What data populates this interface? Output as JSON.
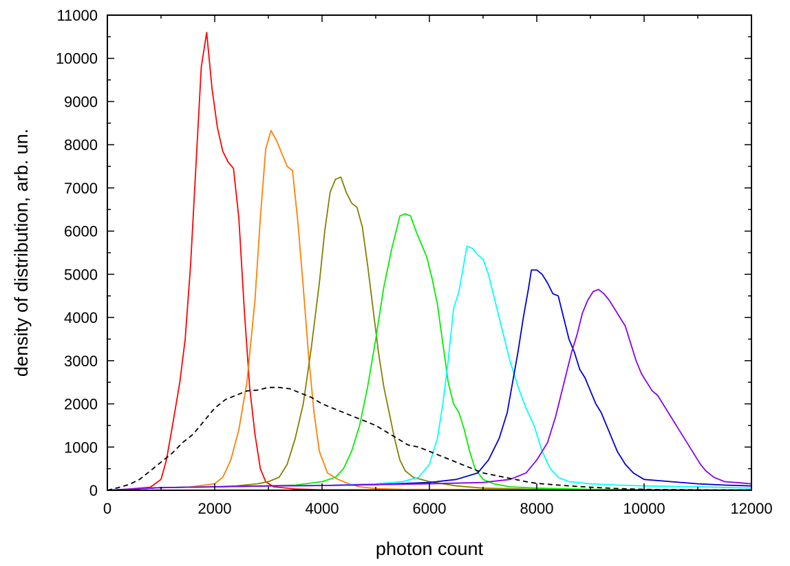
{
  "chart_data": {
    "type": "line",
    "title": "",
    "xlabel": "photon count",
    "ylabel": "density of distribution, arb. un.",
    "xlim": [
      0,
      12000
    ],
    "ylim": [
      0,
      11000
    ],
    "x_ticks": [
      0,
      2000,
      4000,
      6000,
      8000,
      10000,
      12000
    ],
    "y_ticks": [
      0,
      1000,
      2000,
      3000,
      4000,
      5000,
      6000,
      7000,
      8000,
      9000,
      10000,
      11000
    ],
    "grid": false,
    "legend": "none",
    "series": [
      {
        "color": "#ff0000",
        "dashed": false,
        "points": [
          [
            0,
            0
          ],
          [
            400,
            30
          ],
          [
            800,
            70
          ],
          [
            1000,
            250
          ],
          [
            1100,
            700
          ],
          [
            1200,
            1400
          ],
          [
            1350,
            2500
          ],
          [
            1450,
            3500
          ],
          [
            1550,
            5200
          ],
          [
            1650,
            7500
          ],
          [
            1750,
            9800
          ],
          [
            1850,
            10600
          ],
          [
            1950,
            9300
          ],
          [
            2050,
            8400
          ],
          [
            2150,
            7850
          ],
          [
            2250,
            7600
          ],
          [
            2350,
            7450
          ],
          [
            2450,
            6300
          ],
          [
            2550,
            4200
          ],
          [
            2650,
            2400
          ],
          [
            2750,
            1300
          ],
          [
            2850,
            500
          ],
          [
            2950,
            200
          ],
          [
            3100,
            80
          ],
          [
            3500,
            30
          ],
          [
            4000,
            10
          ],
          [
            12000,
            5
          ]
        ]
      },
      {
        "color": "#ff8000",
        "dashed": false,
        "points": [
          [
            0,
            0
          ],
          [
            1000,
            60
          ],
          [
            1500,
            70
          ],
          [
            1800,
            120
          ],
          [
            2000,
            150
          ],
          [
            2150,
            300
          ],
          [
            2300,
            700
          ],
          [
            2450,
            1400
          ],
          [
            2600,
            2500
          ],
          [
            2750,
            4400
          ],
          [
            2850,
            6300
          ],
          [
            2950,
            7900
          ],
          [
            3050,
            8330
          ],
          [
            3150,
            8100
          ],
          [
            3250,
            7800
          ],
          [
            3350,
            7500
          ],
          [
            3450,
            7400
          ],
          [
            3550,
            6200
          ],
          [
            3650,
            4700
          ],
          [
            3750,
            3100
          ],
          [
            3850,
            1800
          ],
          [
            3950,
            900
          ],
          [
            4100,
            400
          ],
          [
            4300,
            250
          ],
          [
            4500,
            150
          ],
          [
            4700,
            80
          ],
          [
            5000,
            40
          ],
          [
            5500,
            20
          ],
          [
            12000,
            5
          ]
        ]
      },
      {
        "color": "#808000",
        "dashed": false,
        "points": [
          [
            0,
            0
          ],
          [
            1000,
            60
          ],
          [
            2000,
            80
          ],
          [
            2400,
            100
          ],
          [
            2800,
            150
          ],
          [
            3000,
            200
          ],
          [
            3200,
            300
          ],
          [
            3350,
            600
          ],
          [
            3500,
            1200
          ],
          [
            3650,
            2000
          ],
          [
            3800,
            3300
          ],
          [
            3950,
            4800
          ],
          [
            4050,
            6000
          ],
          [
            4150,
            6900
          ],
          [
            4250,
            7200
          ],
          [
            4350,
            7250
          ],
          [
            4450,
            6900
          ],
          [
            4550,
            6650
          ],
          [
            4650,
            6550
          ],
          [
            4750,
            6100
          ],
          [
            4850,
            5200
          ],
          [
            4950,
            4200
          ],
          [
            5050,
            3200
          ],
          [
            5150,
            2400
          ],
          [
            5250,
            1800
          ],
          [
            5350,
            1200
          ],
          [
            5450,
            700
          ],
          [
            5550,
            450
          ],
          [
            5700,
            300
          ],
          [
            6000,
            200
          ],
          [
            6500,
            100
          ],
          [
            7000,
            50
          ],
          [
            8000,
            20
          ],
          [
            12000,
            5
          ]
        ]
      },
      {
        "color": "#00ee00",
        "dashed": false,
        "points": [
          [
            0,
            0
          ],
          [
            1000,
            60
          ],
          [
            2000,
            80
          ],
          [
            3000,
            100
          ],
          [
            3500,
            120
          ],
          [
            4000,
            200
          ],
          [
            4250,
            300
          ],
          [
            4400,
            500
          ],
          [
            4550,
            900
          ],
          [
            4700,
            1500
          ],
          [
            4850,
            2400
          ],
          [
            5000,
            3500
          ],
          [
            5150,
            4700
          ],
          [
            5300,
            5600
          ],
          [
            5450,
            6350
          ],
          [
            5550,
            6400
          ],
          [
            5650,
            6350
          ],
          [
            5750,
            6000
          ],
          [
            5850,
            5700
          ],
          [
            5950,
            5400
          ],
          [
            6050,
            4900
          ],
          [
            6150,
            4300
          ],
          [
            6250,
            3400
          ],
          [
            6350,
            2500
          ],
          [
            6450,
            2000
          ],
          [
            6550,
            1800
          ],
          [
            6650,
            1400
          ],
          [
            6750,
            900
          ],
          [
            6850,
            500
          ],
          [
            7000,
            250
          ],
          [
            7200,
            150
          ],
          [
            7500,
            80
          ],
          [
            8000,
            50
          ],
          [
            9000,
            20
          ],
          [
            12000,
            5
          ]
        ]
      },
      {
        "color": "#00ffff",
        "dashed": false,
        "points": [
          [
            0,
            0
          ],
          [
            1000,
            60
          ],
          [
            2000,
            80
          ],
          [
            3000,
            100
          ],
          [
            4000,
            110
          ],
          [
            5000,
            150
          ],
          [
            5500,
            200
          ],
          [
            5800,
            300
          ],
          [
            6000,
            600
          ],
          [
            6150,
            1200
          ],
          [
            6250,
            2000
          ],
          [
            6350,
            3000
          ],
          [
            6450,
            4200
          ],
          [
            6550,
            4600
          ],
          [
            6650,
            5300
          ],
          [
            6700,
            5650
          ],
          [
            6800,
            5600
          ],
          [
            6900,
            5450
          ],
          [
            7000,
            5350
          ],
          [
            7100,
            5000
          ],
          [
            7200,
            4500
          ],
          [
            7300,
            4000
          ],
          [
            7400,
            3500
          ],
          [
            7500,
            3000
          ],
          [
            7650,
            2400
          ],
          [
            7800,
            1900
          ],
          [
            7950,
            1500
          ],
          [
            8100,
            900
          ],
          [
            8250,
            500
          ],
          [
            8400,
            300
          ],
          [
            8600,
            200
          ],
          [
            9000,
            150
          ],
          [
            9500,
            120
          ],
          [
            10000,
            100
          ],
          [
            11000,
            80
          ],
          [
            12000,
            50
          ]
        ]
      },
      {
        "color": "#0000cc",
        "dashed": false,
        "points": [
          [
            0,
            0
          ],
          [
            1000,
            60
          ],
          [
            2000,
            80
          ],
          [
            3000,
            100
          ],
          [
            4000,
            110
          ],
          [
            5000,
            130
          ],
          [
            6000,
            180
          ],
          [
            6500,
            250
          ],
          [
            6900,
            400
          ],
          [
            7100,
            700
          ],
          [
            7300,
            1200
          ],
          [
            7450,
            1800
          ],
          [
            7550,
            2500
          ],
          [
            7650,
            3200
          ],
          [
            7750,
            4000
          ],
          [
            7850,
            4700
          ],
          [
            7900,
            5100
          ],
          [
            8000,
            5100
          ],
          [
            8100,
            5000
          ],
          [
            8200,
            4800
          ],
          [
            8300,
            4550
          ],
          [
            8400,
            4500
          ],
          [
            8500,
            4000
          ],
          [
            8600,
            3500
          ],
          [
            8700,
            3200
          ],
          [
            8800,
            2800
          ],
          [
            8900,
            2600
          ],
          [
            9000,
            2300
          ],
          [
            9100,
            2000
          ],
          [
            9200,
            1800
          ],
          [
            9300,
            1500
          ],
          [
            9400,
            1200
          ],
          [
            9500,
            900
          ],
          [
            9650,
            600
          ],
          [
            9800,
            400
          ],
          [
            10000,
            250
          ],
          [
            10500,
            200
          ],
          [
            11000,
            150
          ],
          [
            11500,
            120
          ],
          [
            12000,
            100
          ]
        ]
      },
      {
        "color": "#8800ee",
        "dashed": false,
        "points": [
          [
            0,
            0
          ],
          [
            1000,
            60
          ],
          [
            2000,
            80
          ],
          [
            3000,
            100
          ],
          [
            4000,
            110
          ],
          [
            5000,
            130
          ],
          [
            6000,
            150
          ],
          [
            7000,
            180
          ],
          [
            7500,
            250
          ],
          [
            7800,
            400
          ],
          [
            8000,
            700
          ],
          [
            8200,
            1100
          ],
          [
            8350,
            1700
          ],
          [
            8450,
            2200
          ],
          [
            8550,
            2700
          ],
          [
            8650,
            3200
          ],
          [
            8750,
            3600
          ],
          [
            8850,
            4100
          ],
          [
            8950,
            4400
          ],
          [
            9050,
            4600
          ],
          [
            9150,
            4650
          ],
          [
            9250,
            4550
          ],
          [
            9350,
            4400
          ],
          [
            9450,
            4200
          ],
          [
            9550,
            4000
          ],
          [
            9650,
            3800
          ],
          [
            9750,
            3400
          ],
          [
            9850,
            3000
          ],
          [
            9950,
            2700
          ],
          [
            10050,
            2500
          ],
          [
            10150,
            2300
          ],
          [
            10250,
            2200
          ],
          [
            10350,
            2000
          ],
          [
            10450,
            1800
          ],
          [
            10550,
            1600
          ],
          [
            10650,
            1400
          ],
          [
            10750,
            1200
          ],
          [
            10850,
            1000
          ],
          [
            10950,
            800
          ],
          [
            11050,
            600
          ],
          [
            11150,
            450
          ],
          [
            11300,
            300
          ],
          [
            11500,
            200
          ],
          [
            11800,
            170
          ],
          [
            12000,
            150
          ]
        ]
      },
      {
        "color": "#000000",
        "dashed": true,
        "points": [
          [
            0,
            0
          ],
          [
            200,
            60
          ],
          [
            400,
            130
          ],
          [
            600,
            250
          ],
          [
            800,
            450
          ],
          [
            1000,
            650
          ],
          [
            1200,
            850
          ],
          [
            1400,
            1100
          ],
          [
            1600,
            1300
          ],
          [
            1800,
            1600
          ],
          [
            2000,
            1900
          ],
          [
            2200,
            2100
          ],
          [
            2400,
            2200
          ],
          [
            2600,
            2300
          ],
          [
            2800,
            2320
          ],
          [
            3000,
            2380
          ],
          [
            3200,
            2380
          ],
          [
            3400,
            2350
          ],
          [
            3600,
            2250
          ],
          [
            3800,
            2150
          ],
          [
            4000,
            2000
          ],
          [
            4200,
            1900
          ],
          [
            4400,
            1800
          ],
          [
            4600,
            1700
          ],
          [
            4800,
            1600
          ],
          [
            5000,
            1500
          ],
          [
            5200,
            1350
          ],
          [
            5400,
            1200
          ],
          [
            5600,
            1050
          ],
          [
            5800,
            1000
          ],
          [
            6000,
            900
          ],
          [
            6200,
            800
          ],
          [
            6400,
            700
          ],
          [
            6600,
            600
          ],
          [
            6800,
            500
          ],
          [
            7000,
            400
          ],
          [
            7200,
            350
          ],
          [
            7400,
            300
          ],
          [
            7600,
            250
          ],
          [
            7800,
            200
          ],
          [
            8000,
            160
          ],
          [
            8500,
            110
          ],
          [
            9000,
            70
          ],
          [
            9500,
            40
          ],
          [
            10000,
            20
          ],
          [
            11000,
            10
          ],
          [
            12000,
            5
          ]
        ]
      }
    ]
  }
}
